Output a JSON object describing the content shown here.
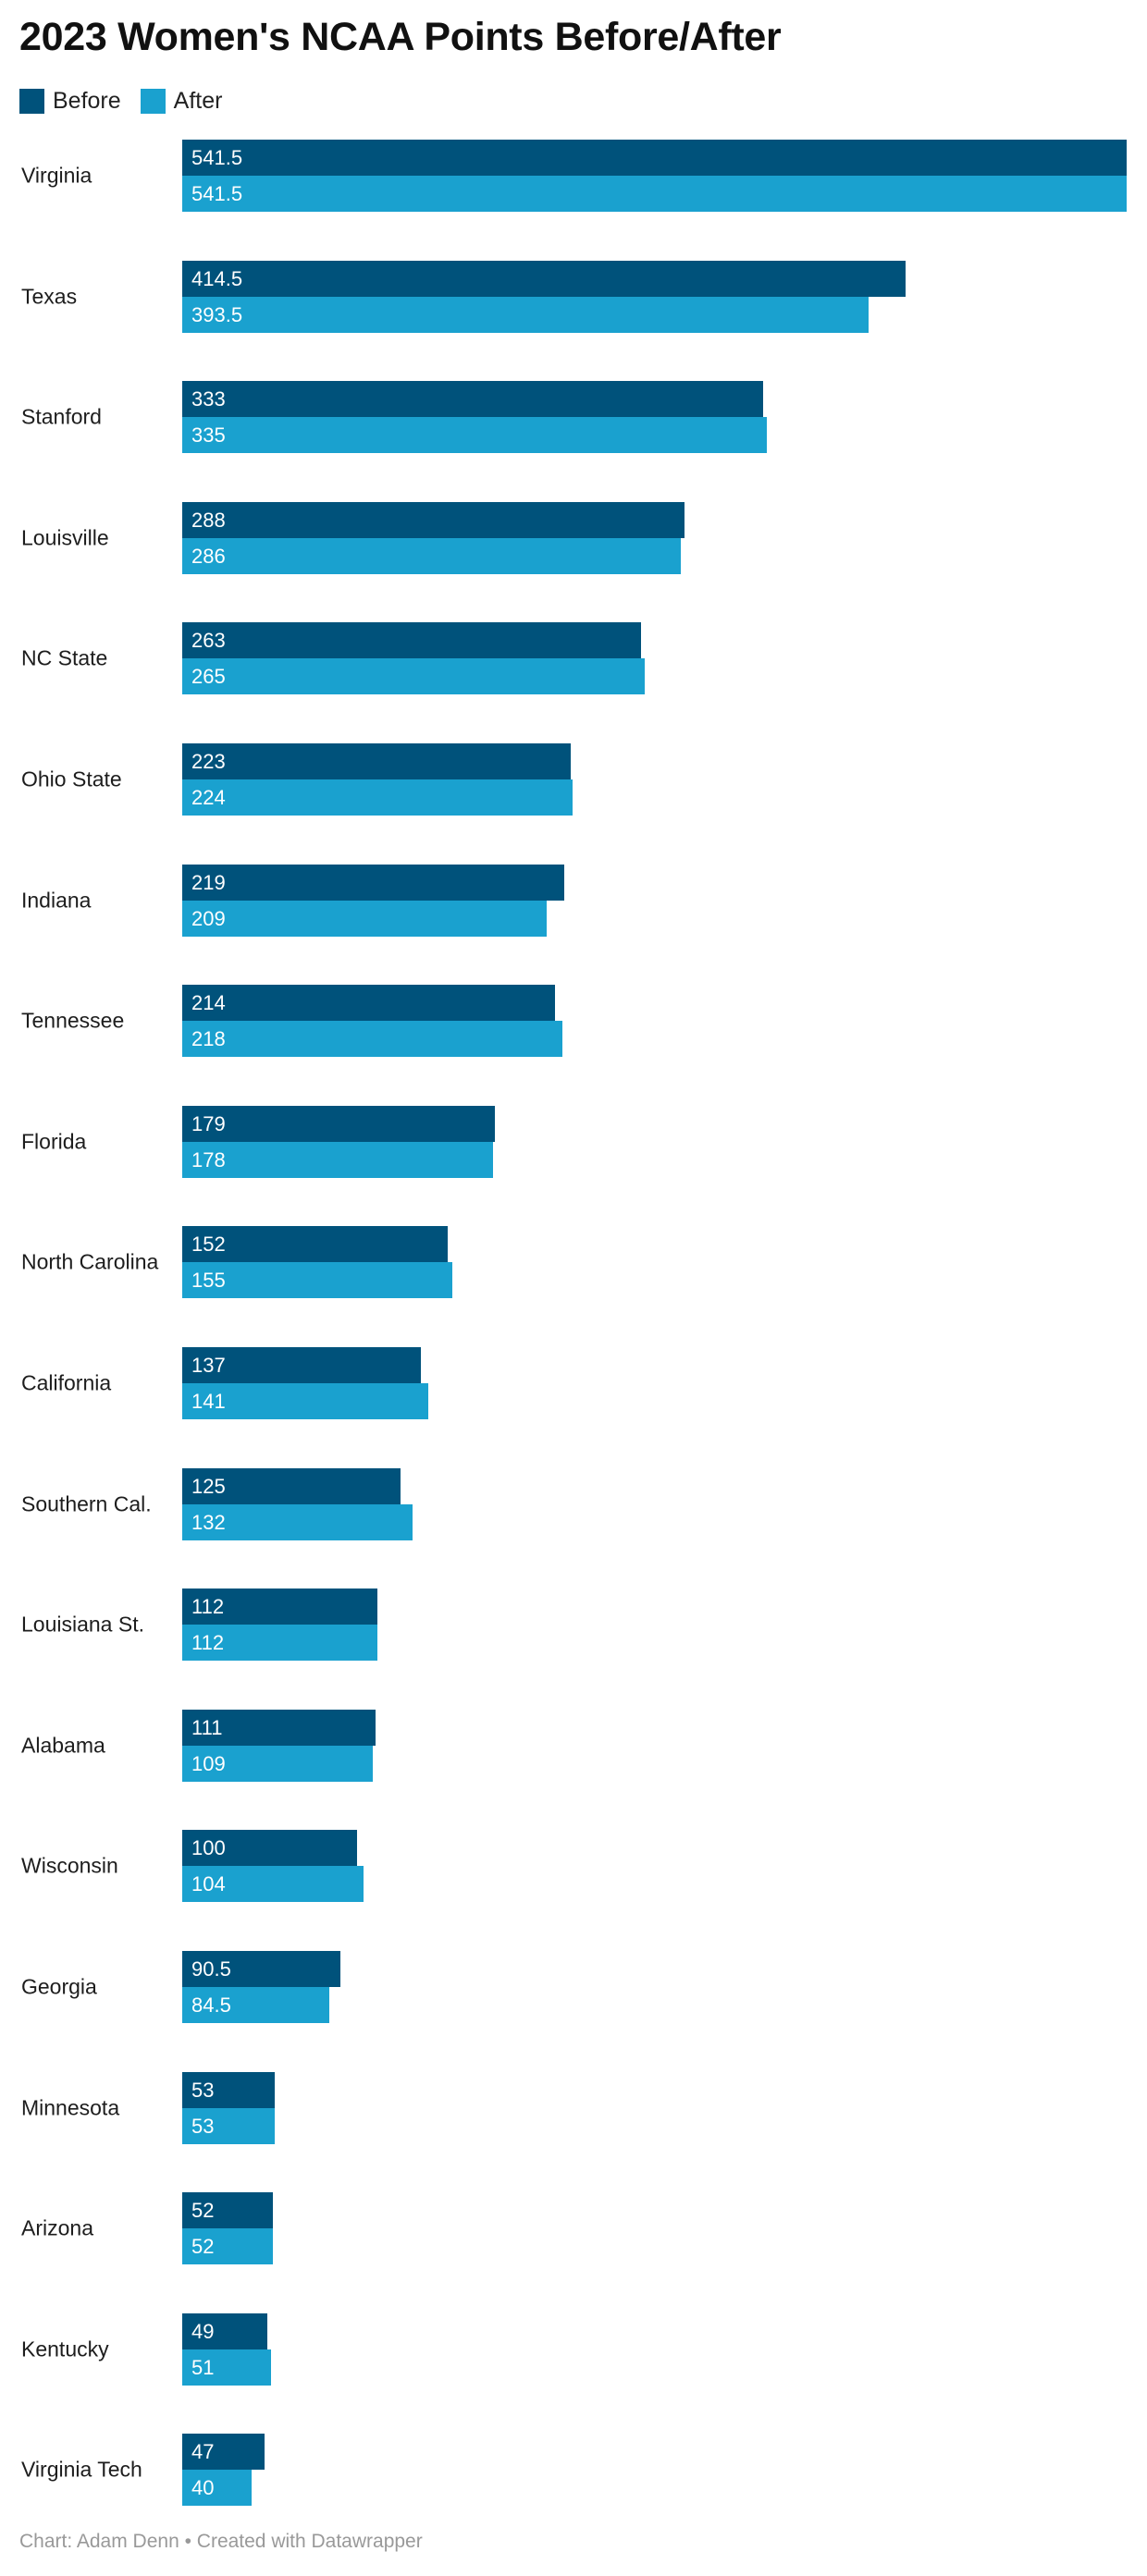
{
  "title": "2023 Women's NCAA Points Before/After",
  "footer": "Chart: Adam Denn • Created with Datawrapper",
  "colors": {
    "before": "#00527b",
    "after": "#1aa1cf",
    "title_text": "#111111",
    "category_text": "#1d1d1d",
    "value_text": "#ffffff",
    "footer_text": "#999999",
    "background": "#ffffff"
  },
  "legend": {
    "position": "top-left",
    "items": [
      {
        "label": "Before",
        "color": "#00527b"
      },
      {
        "label": "After",
        "color": "#1aa1cf"
      }
    ]
  },
  "chart_data": {
    "type": "bar",
    "orientation": "horizontal",
    "title": "2023 Women's NCAA Points Before/After",
    "xlabel": "",
    "ylabel": "",
    "grid": false,
    "xlim": [
      0,
      541.5
    ],
    "value_labels": "inside-bar-start",
    "legend_position": "top-left",
    "categories": [
      "Virginia",
      "Texas",
      "Stanford",
      "Louisville",
      "NC State",
      "Ohio State",
      "Indiana",
      "Tennessee",
      "Florida",
      "North Carolina",
      "California",
      "Southern Cal.",
      "Louisiana St.",
      "Alabama",
      "Wisconsin",
      "Georgia",
      "Minnesota",
      "Arizona",
      "Kentucky",
      "Virginia Tech"
    ],
    "series": [
      {
        "name": "Before",
        "color": "#00527b",
        "values": [
          541.5,
          414.5,
          333,
          288,
          263,
          223,
          219,
          214,
          179,
          152,
          137,
          125,
          112,
          111,
          100,
          90.5,
          53,
          52,
          49,
          47
        ]
      },
      {
        "name": "After",
        "color": "#1aa1cf",
        "values": [
          541.5,
          393.5,
          335,
          286,
          265,
          224,
          209,
          218,
          178,
          155,
          141,
          132,
          112,
          109,
          104,
          84.5,
          53,
          52,
          51,
          40
        ]
      }
    ]
  }
}
